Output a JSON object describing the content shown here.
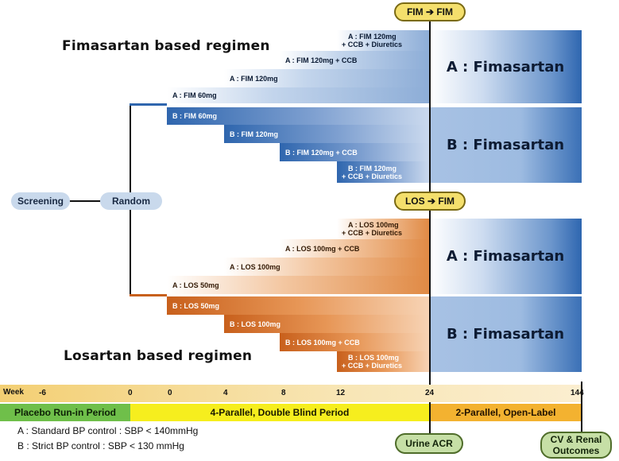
{
  "regimens": {
    "fim_title": "Fimasartan based regimen",
    "los_title": "Losartan based regimen"
  },
  "nodes": {
    "screening": "Screening",
    "random": "Random"
  },
  "switch_labels": {
    "fim_fim": "FIM ➔ FIM",
    "los_fim": "LOS ➔ FIM"
  },
  "fim_upper_steps": [
    {
      "line1": "A : FIM 60mg",
      "line2": ""
    },
    {
      "line1": "A : FIM 120mg",
      "line2": ""
    },
    {
      "line1": "A : FIM 120mg + CCB",
      "line2": ""
    },
    {
      "line1": "A : FIM 120mg",
      "line2": "+ CCB + Diuretics"
    }
  ],
  "fim_lower_steps": [
    {
      "line1": "B : FIM 60mg",
      "line2": ""
    },
    {
      "line1": "B : FIM 120mg",
      "line2": ""
    },
    {
      "line1": "B : FIM 120mg + CCB",
      "line2": ""
    },
    {
      "line1": "B : FIM 120mg",
      "line2": "+ CCB + Diuretics"
    }
  ],
  "los_upper_steps": [
    {
      "line1": "A : LOS 50mg",
      "line2": ""
    },
    {
      "line1": "A : LOS 100mg",
      "line2": ""
    },
    {
      "line1": "A : LOS 100mg + CCB",
      "line2": ""
    },
    {
      "line1": "A : LOS 100mg",
      "line2": "+ CCB + Diuretics"
    }
  ],
  "los_lower_steps": [
    {
      "line1": "B : LOS 50mg",
      "line2": ""
    },
    {
      "line1": "B : LOS 100mg",
      "line2": ""
    },
    {
      "line1": "B : LOS 100mg + CCB",
      "line2": ""
    },
    {
      "line1": "B : LOS 100mg",
      "line2": "+ CCB + Diuretics"
    }
  ],
  "panels": {
    "fim_a": "A : Fimasartan",
    "fim_b": "B : Fimasartan",
    "los_a": "A : Fimasartan",
    "los_b": "B : Fimasartan"
  },
  "timeline": {
    "week_label": "Week",
    "ticks": [
      "-6",
      "0",
      "0",
      "4",
      "8",
      "12",
      "24",
      "144"
    ],
    "periods": {
      "placebo": "Placebo Run-in Period",
      "double_blind": "4-Parallel, Double Blind Period",
      "open_label": "2-Parallel, Open-Label"
    }
  },
  "outcomes": {
    "urine_acr": "Urine ACR",
    "cv_renal_line1": "CV & Renal",
    "cv_renal_line2": "Outcomes"
  },
  "notes": {
    "a": "A : Standard BP control : SBP < 140mmHg",
    "b": "B : Strict BP control : SBP < 130 mmHg"
  },
  "colors": {
    "blue_accent": "#2f66ae",
    "orange_accent": "#c8601c",
    "placebo_green": "#6fbf4a",
    "double_blind_yellow": "#f6ee1e",
    "open_label_orange": "#f3b230",
    "oval_yellow": "#f4df6c",
    "outcome_green": "#c6dfa6"
  }
}
